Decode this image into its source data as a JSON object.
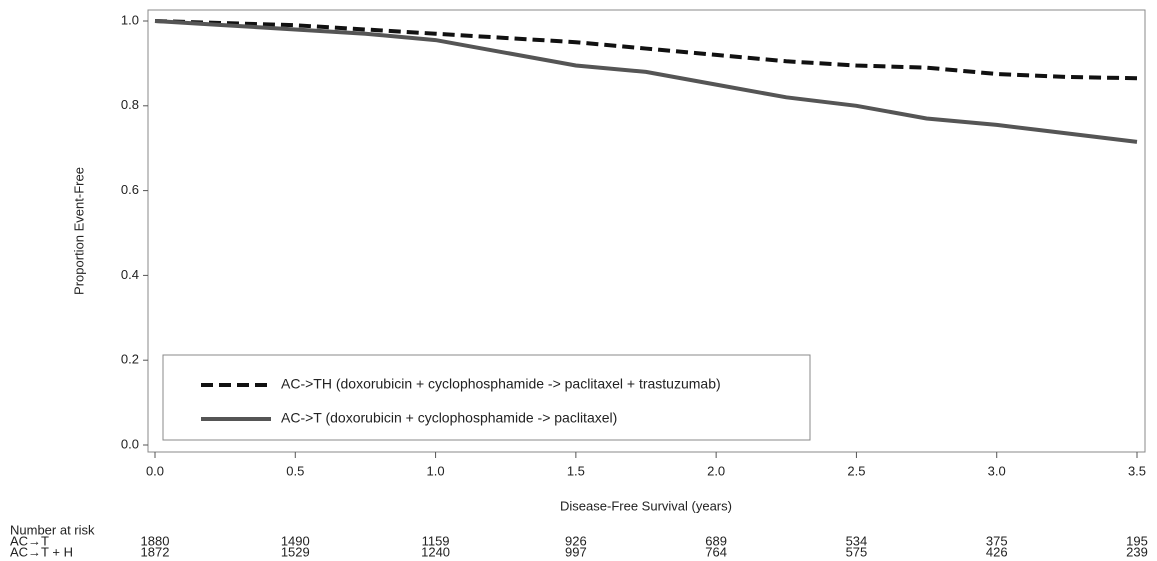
{
  "chart_data": {
    "type": "line",
    "x_label": "Disease-Free Survival (years)",
    "y_label": "Proportion Event-Free",
    "x": [
      0,
      0.25,
      0.5,
      0.75,
      1.0,
      1.25,
      1.5,
      1.75,
      2.0,
      2.25,
      2.5,
      2.75,
      3.0,
      3.25,
      3.5
    ],
    "series": [
      {
        "name": "AC->TH (doxorubicin + cyclophosphamide -> paclitaxel + trastuzumab)",
        "color": "#111111",
        "dash": true,
        "values": [
          1.0,
          0.995,
          0.99,
          0.98,
          0.97,
          0.96,
          0.95,
          0.935,
          0.92,
          0.905,
          0.895,
          0.89,
          0.875,
          0.868,
          0.865
        ]
      },
      {
        "name": "AC->T (doxorubicin + cyclophosphamide -> paclitaxel)",
        "color": "#555555",
        "dash": false,
        "values": [
          1.0,
          0.99,
          0.98,
          0.97,
          0.955,
          0.925,
          0.895,
          0.88,
          0.85,
          0.82,
          0.8,
          0.77,
          0.755,
          0.735,
          0.715
        ]
      }
    ],
    "xlim": [
      0,
      3.5
    ],
    "ylim": [
      0,
      1
    ],
    "xticks": [
      {
        "value": 0,
        "label": "0.0"
      },
      0.5,
      {
        "value": 1,
        "label": "1.0"
      },
      1.5,
      {
        "value": 2,
        "label": "2.0"
      },
      2.5,
      {
        "value": 3,
        "label": "3.0"
      },
      3.5
    ],
    "yticks": [
      {
        "value": 0,
        "label": "0.0"
      },
      0.2,
      0.4,
      0.6,
      0.8,
      {
        "value": 1,
        "label": "1.0"
      }
    ],
    "legend": "lower left",
    "risk_table": {
      "title": "Number at risk",
      "rows": [
        {
          "label": "AC→T",
          "values": [
            1880,
            1490,
            1159,
            926,
            689,
            534,
            375,
            195
          ]
        },
        {
          "label": "AC→T + H",
          "values": [
            1872,
            1529,
            1240,
            997,
            764,
            575,
            426,
            239
          ]
        }
      ]
    }
  }
}
